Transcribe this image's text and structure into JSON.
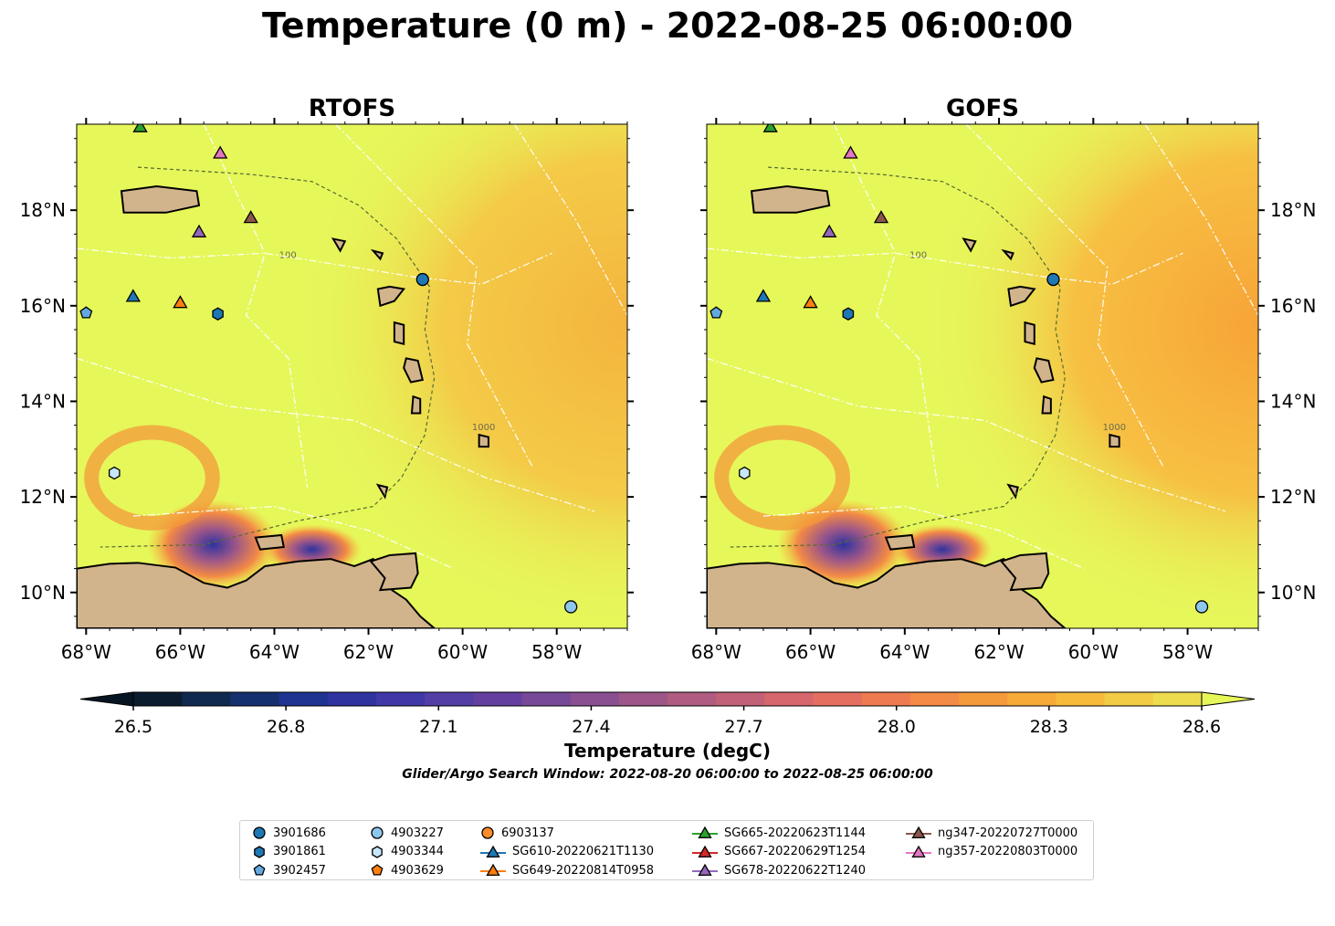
{
  "title": "Temperature (0 m) - 2022-08-25 06:00:00",
  "panels": [
    {
      "title": "RTOFS",
      "model": "rtofs"
    },
    {
      "title": "GOFS",
      "model": "gofs"
    }
  ],
  "map": {
    "lon_range": [
      -68.2,
      -56.5
    ],
    "lat_range": [
      9.25,
      19.8
    ],
    "lon_ticks": [
      -68,
      -66,
      -64,
      -62,
      -60,
      -58
    ],
    "lon_tick_labels": [
      "68°W",
      "66°W",
      "64°W",
      "62°W",
      "60°W",
      "58°W"
    ],
    "lat_ticks": [
      10,
      12,
      14,
      16,
      18
    ],
    "lat_tick_labels": [
      "10°N",
      "12°N",
      "14°N",
      "16°N",
      "18°N"
    ],
    "bathymetry_labels": [
      "1000",
      "100"
    ],
    "colors": {
      "ocean_warm": "#e6f75a",
      "land": "#d2b48c",
      "coast": "#000000"
    }
  },
  "colorbar": {
    "label": "Temperature (degC)",
    "min": 26.5,
    "max": 28.6,
    "ticks": [
      "26.5",
      "26.8",
      "27.1",
      "27.4",
      "27.7",
      "28.0",
      "28.3",
      "28.6"
    ],
    "colors": [
      "#0b1c2e",
      "#0f2a4e",
      "#15306e",
      "#1f3390",
      "#2e33a0",
      "#3f38a6",
      "#523ea5",
      "#643f9f",
      "#774898",
      "#8a4f90",
      "#9c5688",
      "#b05b80",
      "#c26077",
      "#d5676d",
      "#e46f60",
      "#ee7a50",
      "#f38a45",
      "#f59a3b",
      "#f7aa37",
      "#f7bb3b",
      "#f2cc45",
      "#ecdc4e"
    ],
    "extend_low_color": "#071522",
    "extend_high_color": "#e6f75a"
  },
  "search_window": "Glider/Argo Search Window: 2022-08-20 06:00:00 to 2022-08-25 06:00:00",
  "platforms": [
    {
      "name": "3901686",
      "marker": "circle",
      "color": "#1f77b4",
      "lon": -60.85,
      "lat": 16.55
    },
    {
      "name": "3901861",
      "marker": "hexagon",
      "color": "#1f77b4",
      "lon": -65.2,
      "lat": 15.83
    },
    {
      "name": "3902457",
      "marker": "pentagon",
      "color": "#64a8e0",
      "lon": -68.0,
      "lat": 15.85
    },
    {
      "name": "4903227",
      "marker": "circle",
      "color": "#8ec7ee",
      "lon": -57.7,
      "lat": 9.7
    },
    {
      "name": "4903344",
      "marker": "hexagon",
      "color": "#c7e6f8",
      "lon": -67.4,
      "lat": 12.5
    },
    {
      "name": "4903629",
      "marker": "pentagon",
      "color": "#ff7f0e",
      "lon": null,
      "lat": null
    },
    {
      "name": "6903137",
      "marker": "circle",
      "color": "#ff8c2a",
      "lon": null,
      "lat": null
    },
    {
      "name": "SG610-20220621T1130",
      "marker": "triangle",
      "color": "#1f77b4",
      "lon": -67.0,
      "lat": 16.2
    },
    {
      "name": "SG649-20220814T0958",
      "marker": "triangle",
      "color": "#ff7f0e",
      "lon": -66.0,
      "lat": 16.07
    },
    {
      "name": "SG665-20220623T1144",
      "marker": "triangle",
      "color": "#2ca02c",
      "lon": -66.85,
      "lat": 19.75
    },
    {
      "name": "SG667-20220629T1254",
      "marker": "triangle",
      "color": "#d62728",
      "lon": null,
      "lat": null
    },
    {
      "name": "SG678-20220622T1240",
      "marker": "triangle",
      "color": "#9467bd",
      "lon": -65.6,
      "lat": 17.55
    },
    {
      "name": "ng347-20220727T0000",
      "marker": "triangle",
      "color": "#8c564b",
      "lon": -64.5,
      "lat": 17.85
    },
    {
      "name": "ng357-20220803T0000",
      "marker": "triangle",
      "color": "#e377c2",
      "lon": -65.15,
      "lat": 19.2
    }
  ]
}
